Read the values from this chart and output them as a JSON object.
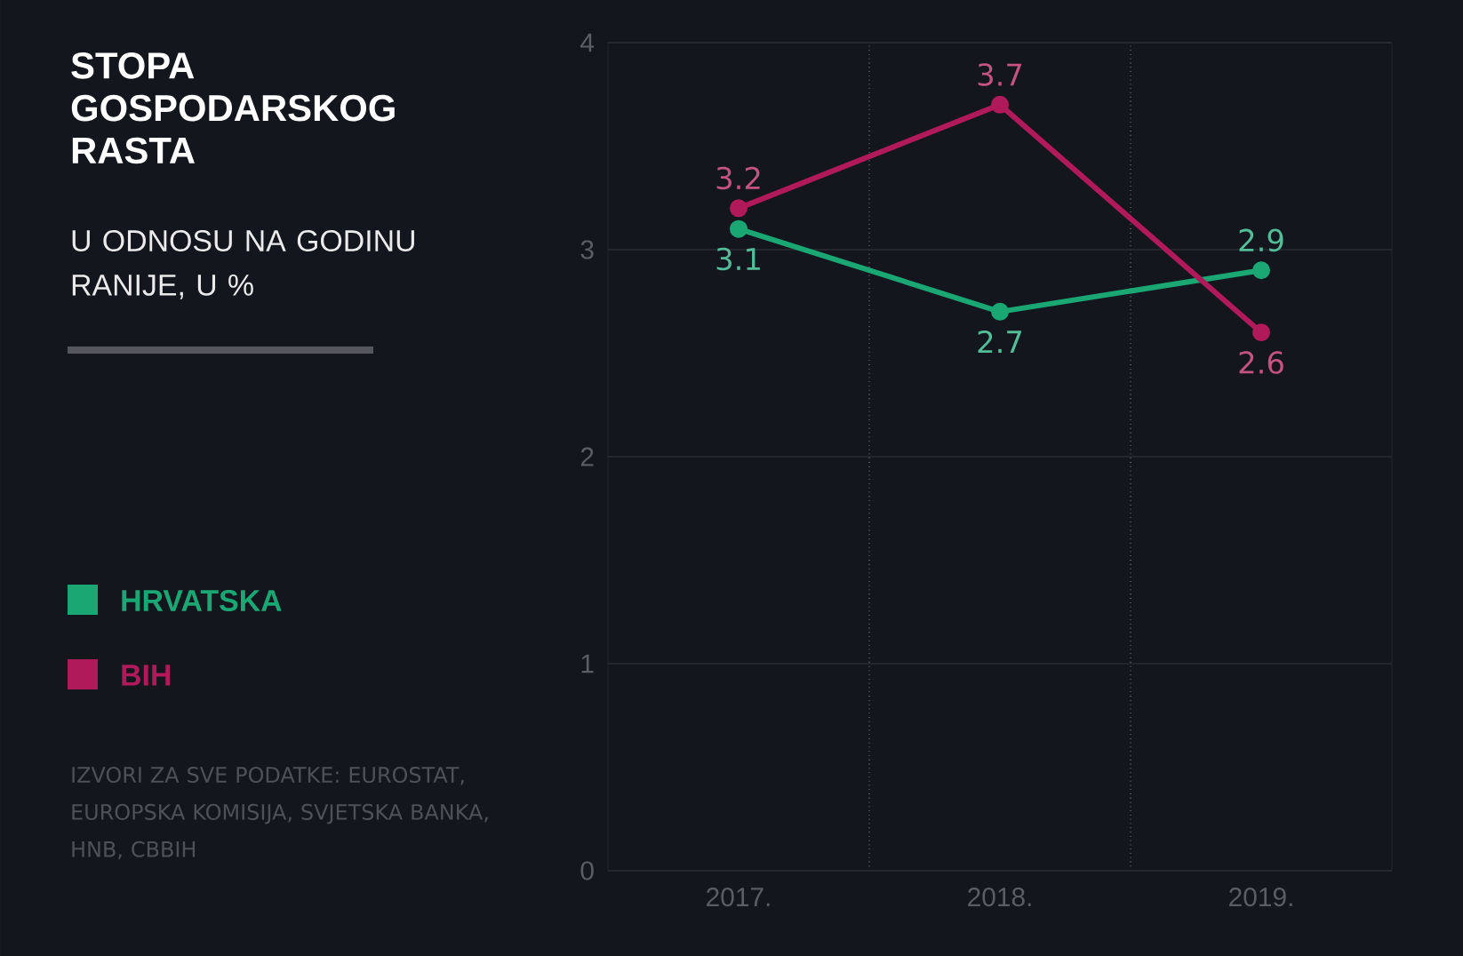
{
  "chart_data": {
    "type": "line",
    "title": "STOPA GOSPODARSKOG RASTA",
    "subtitle": "U ODNOSU NA GODINU RANIJE, U %",
    "annotations": [
      "IZVORI ZA SVE PODATKE: EUROSTAT, EUROPSKA KOMISIJA, SVJETSKA BANKA, HNB, CBBIH"
    ],
    "categories": [
      "2017.",
      "2018.",
      "2019."
    ],
    "series": [
      {
        "name": "HRVATSKA",
        "color": "#1aa774",
        "values": [
          3.1,
          2.7,
          2.9
        ]
      },
      {
        "name": "BIH",
        "color": "#b0195a",
        "values": [
          3.2,
          3.7,
          2.6
        ]
      }
    ],
    "ylim": [
      0,
      4
    ],
    "yticks": [
      0,
      1,
      2,
      3,
      4
    ],
    "grid": true,
    "legend": "left",
    "marker": "circle",
    "data_labels": true
  }
}
